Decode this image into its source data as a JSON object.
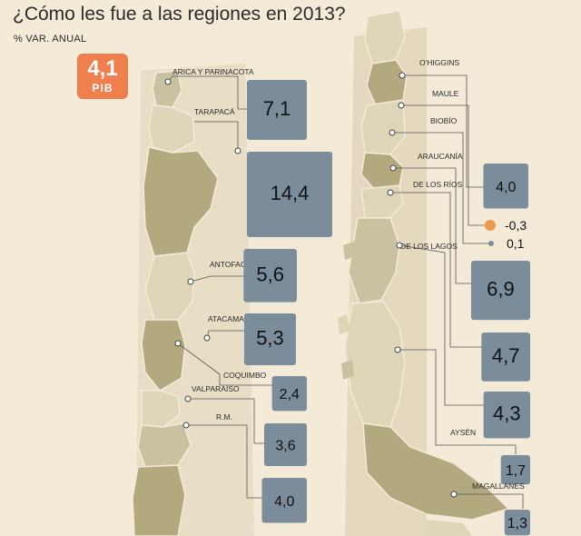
{
  "chart_data": {
    "type": "bar",
    "title": "¿Cómo les fue a las regiones en 2013?",
    "subtitle": "% VAR. ANUAL",
    "national": {
      "label": "PIB",
      "value": 4.1,
      "value_label": "4,1"
    },
    "categories": [
      "ARICA Y PARINACOTA",
      "TARAPACÁ",
      "ANTOFAGASTA",
      "ATACAMA",
      "COQUIMBO",
      "VALPARAÍSO",
      "R.M.",
      "O'HIGGINS",
      "MAULE",
      "BIOBÍO",
      "ARAUCANÍA",
      "DE LOS RÍOS",
      "DE LOS LAGOS",
      "AYSÉN",
      "MAGALLANES"
    ],
    "values": [
      7.1,
      14.4,
      5.6,
      5.3,
      2.4,
      3.6,
      4.0,
      4.0,
      -0.3,
      0.1,
      6.9,
      4.7,
      4.3,
      1.7,
      1.3
    ],
    "value_labels": [
      "7,1",
      "14,4",
      "5,6",
      "5,3",
      "2,4",
      "3,6",
      "4,0",
      "4,0",
      "-0,3",
      "0,1",
      "6,9",
      "4,7",
      "4,3",
      "1,7",
      "1,3"
    ],
    "colors": {
      "positive": "#7b8d9b",
      "negative": "#ef9a4a",
      "badge": "#ef7f4c"
    }
  }
}
